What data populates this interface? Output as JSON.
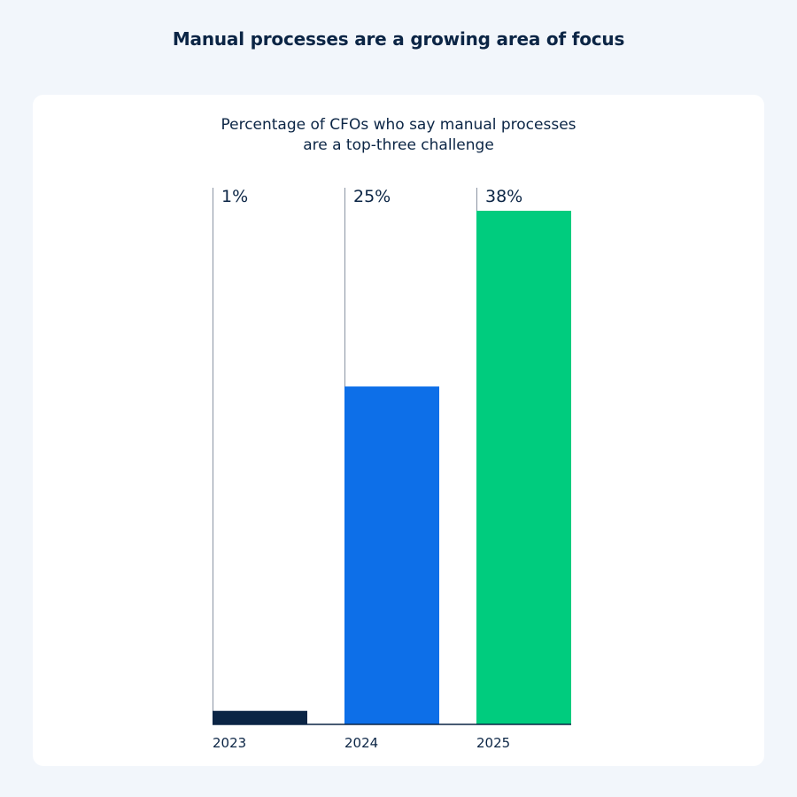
{
  "header": {
    "title": "Manual processes are a growing area of focus"
  },
  "chart_data": {
    "type": "bar",
    "title": "Percentage of CFOs who say manual processes are a top-three challenge",
    "title_lines": [
      "Percentage of CFOs who say manual processes",
      "are a top-three challenge"
    ],
    "categories": [
      "2023",
      "2024",
      "2025"
    ],
    "values": [
      1,
      25,
      38
    ],
    "value_labels": [
      "1%",
      "25%",
      "38%"
    ],
    "ylim": [
      0,
      38
    ],
    "colors": [
      "#0b2545",
      "#0d6fe8",
      "#00cc7e"
    ],
    "xlabel": "",
    "ylabel": "",
    "grid": false,
    "legend": "none"
  }
}
